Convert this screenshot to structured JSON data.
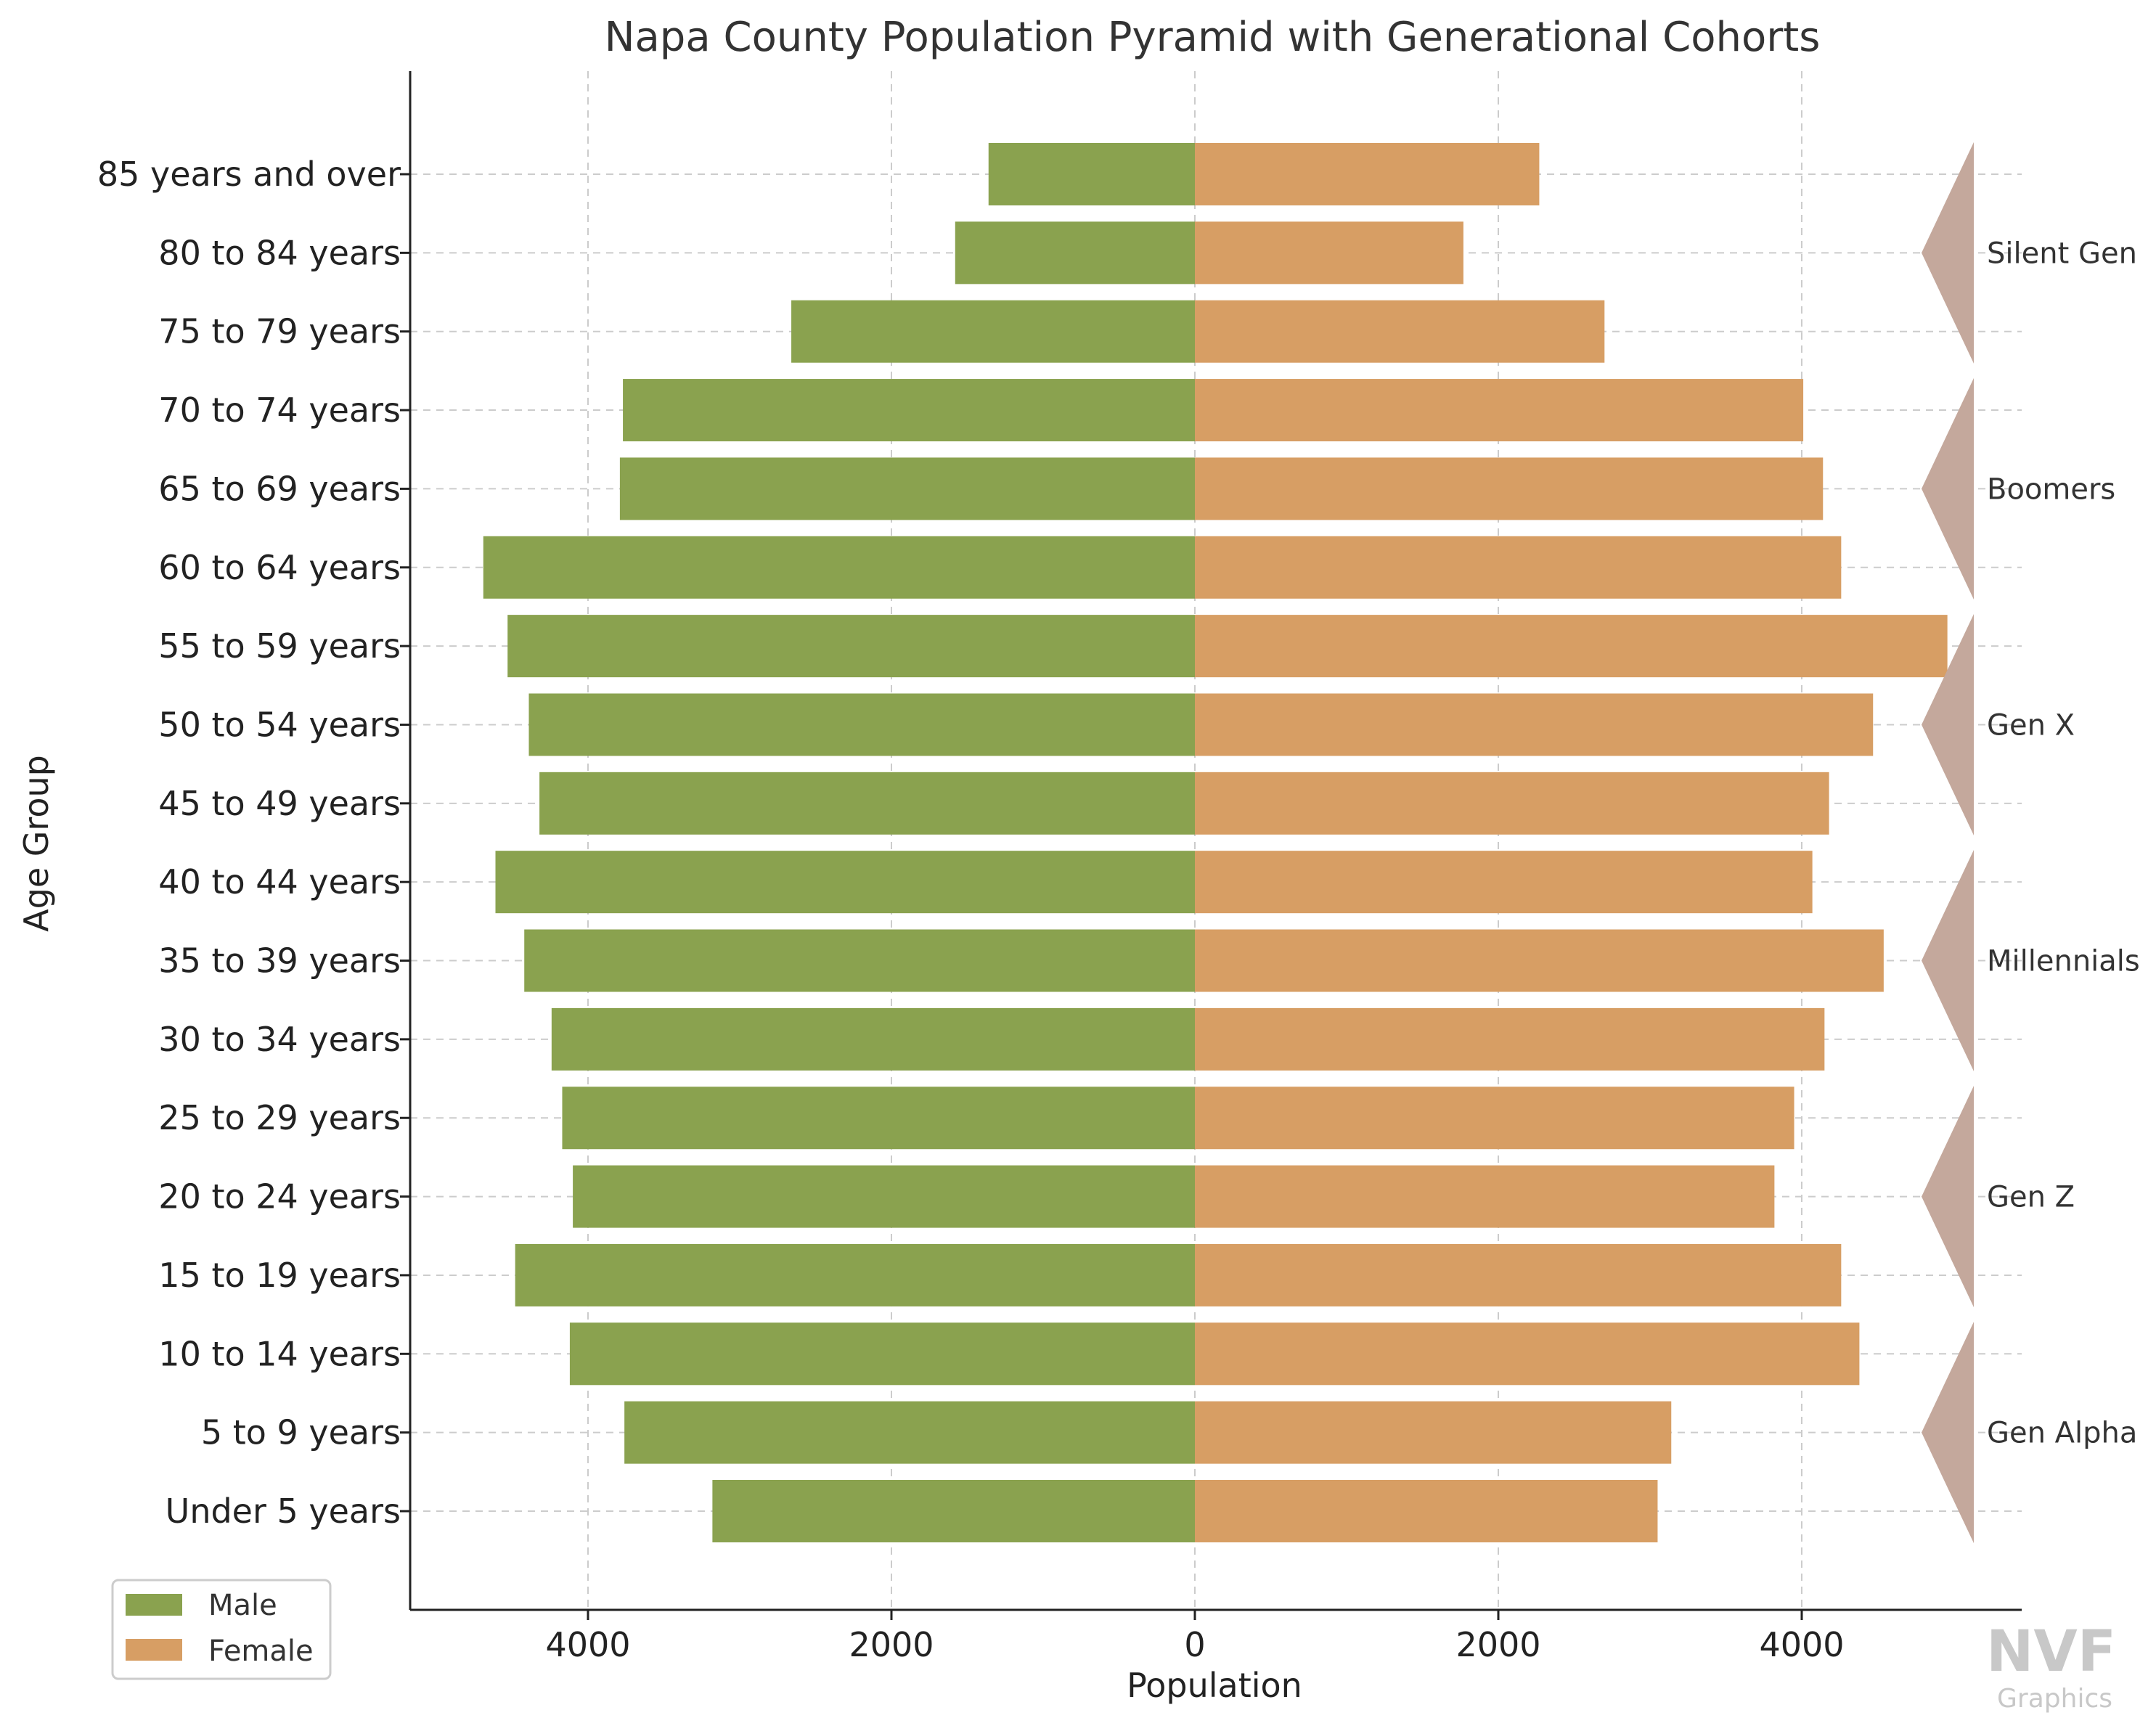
{
  "chart_data": {
    "type": "bar",
    "orientation": "horizontal-pyramid",
    "title": "Napa County Population Pyramid with Generational Cohorts",
    "xlabel": "Population",
    "ylabel": "Age Group",
    "xlim": [
      -5200,
      5400
    ],
    "x_ticks": [
      -4000,
      -2000,
      0,
      2000,
      4000
    ],
    "x_tick_labels": [
      "4000",
      "2000",
      "0",
      "2000",
      "4000"
    ],
    "grid": true,
    "legend_position": "bottom-left",
    "categories": [
      "Under 5 years",
      "5 to 9 years",
      "10 to 14 years",
      "15 to 19 years",
      "20 to 24 years",
      "25 to 29 years",
      "30 to 34 years",
      "35 to 39 years",
      "40 to 44 years",
      "45 to 49 years",
      "50 to 54 years",
      "55 to 59 years",
      "60 to 64 years",
      "65 to 69 years",
      "70 to 74 years",
      "75 to 79 years",
      "80 to 84 years",
      "85 years and over"
    ],
    "series": [
      {
        "name": "Male",
        "color": "#8aa24f",
        "values": [
          3180,
          3760,
          4120,
          4480,
          4100,
          4170,
          4240,
          4420,
          4610,
          4320,
          4390,
          4530,
          4690,
          3790,
          3770,
          2660,
          1580,
          1360
        ]
      },
      {
        "name": "Female",
        "color": "#d79e64",
        "values": [
          3050,
          3140,
          4380,
          4260,
          3820,
          3950,
          4150,
          4540,
          4070,
          4180,
          4470,
          4960,
          4260,
          4140,
          4010,
          2700,
          1770,
          2270
        ]
      }
    ],
    "cohorts": [
      {
        "name": "Gen Alpha",
        "from": 0,
        "to": 2
      },
      {
        "name": "Gen Z",
        "from": 3,
        "to": 5
      },
      {
        "name": "Millennials",
        "from": 6,
        "to": 8
      },
      {
        "name": "Gen X",
        "from": 9,
        "to": 11
      },
      {
        "name": "Boomers",
        "from": 12,
        "to": 14
      },
      {
        "name": "Silent Gen",
        "from": 15,
        "to": 17
      }
    ],
    "cohort_color": "#c4a89c"
  },
  "watermark": {
    "line1": "NVF",
    "line2": "Graphics"
  }
}
